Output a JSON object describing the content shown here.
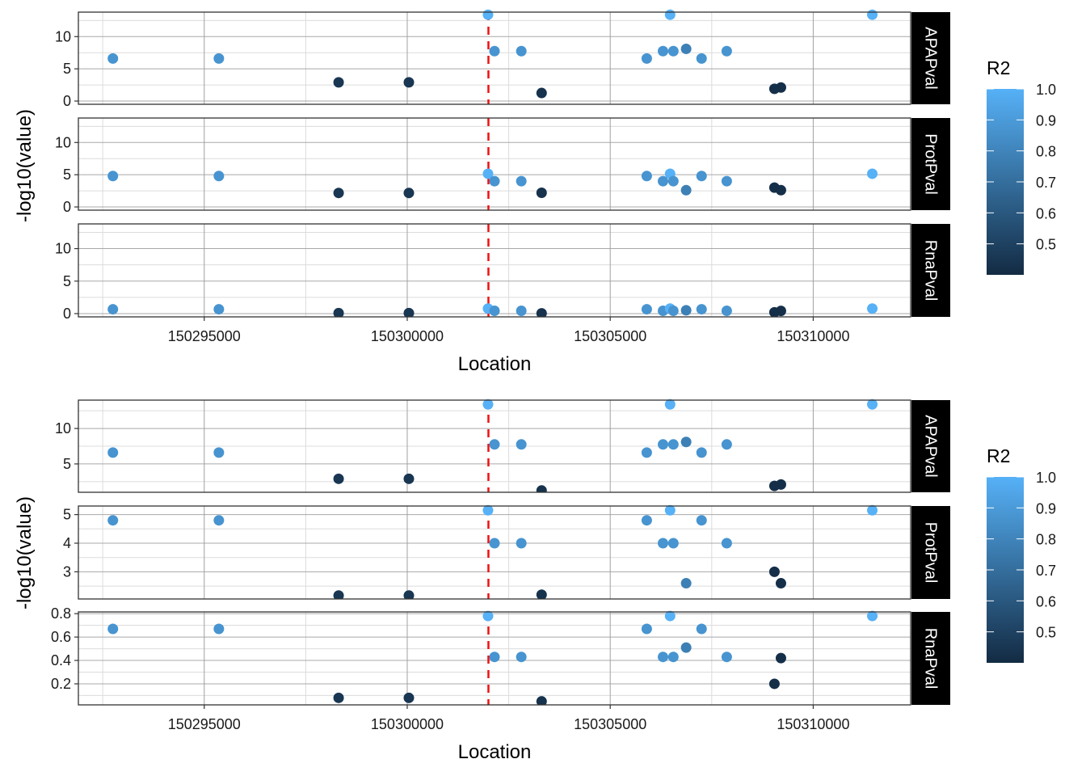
{
  "chart_data": [
    {
      "type": "scatter",
      "title": "",
      "xlabel": "Location",
      "ylabel": "-log10(value)",
      "facet_scales": "fixed",
      "xlim": [
        150291900,
        150312400
      ],
      "x_ticks": [
        150295000,
        150300000,
        150305000,
        150310000
      ],
      "x_tick_labels": [
        "150295000",
        "150300000",
        "150305000",
        "150310000"
      ],
      "vline": {
        "x": 150302000,
        "color": "#ee1111",
        "style": "dashed"
      },
      "color_legend": {
        "title": "R2",
        "range": [
          0.4,
          1.0
        ],
        "ticks": [
          1.0,
          0.9,
          0.8,
          0.7,
          0.6,
          0.5
        ],
        "tick_labels": [
          "1.0",
          "0.9",
          "0.8",
          "0.7",
          "0.6",
          "0.5"
        ],
        "low_color": "#132b43",
        "high_color": "#56b1f7",
        "position": "right"
      },
      "grid": true,
      "panels": [
        {
          "label": "APAPval",
          "ylim": [
            -0.5,
            13.8
          ],
          "y_ticks": [
            0,
            5,
            10
          ],
          "y_tick_labels": [
            "0",
            "5",
            "10"
          ],
          "y_minor": [
            2.5,
            7.5,
            12.5
          ]
        },
        {
          "label": "ProtPval",
          "ylim": [
            -0.5,
            13.8
          ],
          "y_ticks": [
            0,
            5,
            10
          ],
          "y_tick_labels": [
            "0",
            "5",
            "10"
          ],
          "y_minor": [
            2.5,
            7.5,
            12.5
          ]
        },
        {
          "label": "RnaPval",
          "ylim": [
            -0.5,
            13.8
          ],
          "y_ticks": [
            0,
            5,
            10
          ],
          "y_tick_labels": [
            "0",
            "5",
            "10"
          ],
          "y_minor": [
            2.5,
            7.5,
            12.5
          ]
        }
      ]
    },
    {
      "type": "scatter",
      "title": "",
      "xlabel": "Location",
      "ylabel": "-log10(value)",
      "facet_scales": "free_y",
      "xlim": [
        150291900,
        150312400
      ],
      "x_ticks": [
        150295000,
        150300000,
        150305000,
        150310000
      ],
      "x_tick_labels": [
        "150295000",
        "150300000",
        "150305000",
        "150310000"
      ],
      "vline": {
        "x": 150302000,
        "color": "#ee1111",
        "style": "dashed"
      },
      "color_legend": {
        "title": "R2",
        "range": [
          0.4,
          1.0
        ],
        "ticks": [
          1.0,
          0.9,
          0.8,
          0.7,
          0.6,
          0.5
        ],
        "tick_labels": [
          "1.0",
          "0.9",
          "0.8",
          "0.7",
          "0.6",
          "0.5"
        ],
        "low_color": "#132b43",
        "high_color": "#56b1f7",
        "position": "right"
      },
      "grid": true,
      "panels": [
        {
          "label": "APAPval",
          "ylim": [
            1.0,
            14.0
          ],
          "y_ticks": [
            5,
            10
          ],
          "y_tick_labels": [
            "5",
            "10"
          ],
          "y_minor": [
            2.5,
            7.5,
            12.5
          ]
        },
        {
          "label": "ProtPval",
          "ylim": [
            2.05,
            5.3
          ],
          "y_ticks": [
            3,
            4,
            5
          ],
          "y_tick_labels": [
            "3",
            "4",
            "5"
          ],
          "y_minor": [
            2.5,
            3.5,
            4.5
          ]
        },
        {
          "label": "RnaPval",
          "ylim": [
            0.02,
            0.815
          ],
          "y_ticks": [
            0.2,
            0.4,
            0.6,
            0.8
          ],
          "y_tick_labels": [
            "0.2",
            "0.4",
            "0.6",
            "0.8"
          ],
          "y_minor": [
            0.1,
            0.3,
            0.5,
            0.7
          ]
        }
      ]
    }
  ],
  "points": [
    {
      "location": 150292750,
      "r2": 0.87,
      "APAPval": 6.6,
      "ProtPval": 4.8,
      "RnaPval": 0.67
    },
    {
      "location": 150295360,
      "r2": 0.87,
      "APAPval": 6.6,
      "ProtPval": 4.8,
      "RnaPval": 0.67
    },
    {
      "location": 150298310,
      "r2": 0.45,
      "APAPval": 2.9,
      "ProtPval": 2.17,
      "RnaPval": 0.08
    },
    {
      "location": 150300040,
      "r2": 0.45,
      "APAPval": 2.9,
      "ProtPval": 2.17,
      "RnaPval": 0.08
    },
    {
      "location": 150301990,
      "r2": 1.0,
      "APAPval": 13.4,
      "ProtPval": 5.15,
      "RnaPval": 0.78
    },
    {
      "location": 150302150,
      "r2": 0.87,
      "APAPval": 7.75,
      "ProtPval": 4.0,
      "RnaPval": 0.43
    },
    {
      "location": 150302810,
      "r2": 0.87,
      "APAPval": 7.75,
      "ProtPval": 4.0,
      "RnaPval": 0.43
    },
    {
      "location": 150303310,
      "r2": 0.43,
      "APAPval": 1.25,
      "ProtPval": 2.2,
      "RnaPval": 0.05
    },
    {
      "location": 150305900,
      "r2": 0.87,
      "APAPval": 6.6,
      "ProtPval": 4.8,
      "RnaPval": 0.67
    },
    {
      "location": 150306300,
      "r2": 0.87,
      "APAPval": 7.75,
      "ProtPval": 4.0,
      "RnaPval": 0.43
    },
    {
      "location": 150306475,
      "r2": 1.0,
      "APAPval": 13.4,
      "ProtPval": 5.15,
      "RnaPval": 0.78
    },
    {
      "location": 150306555,
      "r2": 0.87,
      "APAPval": 7.75,
      "ProtPval": 4.0,
      "RnaPval": 0.43
    },
    {
      "location": 150306870,
      "r2": 0.78,
      "APAPval": 8.1,
      "ProtPval": 2.6,
      "RnaPval": 0.51
    },
    {
      "location": 150307250,
      "r2": 0.87,
      "APAPval": 6.6,
      "ProtPval": 4.8,
      "RnaPval": 0.67
    },
    {
      "location": 150307870,
      "r2": 0.87,
      "APAPval": 7.75,
      "ProtPval": 4.0,
      "RnaPval": 0.43
    },
    {
      "location": 150309045,
      "r2": 0.42,
      "APAPval": 1.9,
      "ProtPval": 3.0,
      "RnaPval": 0.2
    },
    {
      "location": 150309205,
      "r2": 0.42,
      "APAPval": 2.1,
      "ProtPval": 2.6,
      "RnaPval": 0.42
    },
    {
      "location": 150311455,
      "r2": 1.0,
      "APAPval": 13.4,
      "ProtPval": 5.15,
      "RnaPval": 0.78
    }
  ]
}
